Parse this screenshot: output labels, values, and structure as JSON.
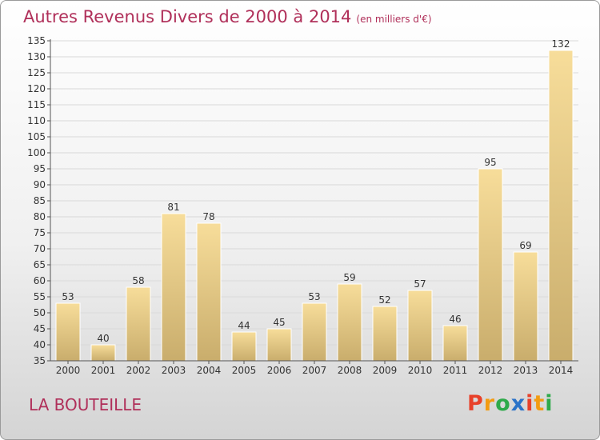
{
  "header": {
    "title": "Autres Revenus Divers de 2000 à 2014",
    "subtitle": "(en milliers d'€)"
  },
  "footer": {
    "commune": "LA BOUTEILLE",
    "logo_letters": [
      "P",
      "r",
      "o",
      "x",
      "i",
      "t",
      "i"
    ],
    "logo_colors": [
      "#e8412a",
      "#f39c12",
      "#2eaa4a",
      "#2b73c8",
      "#e8412a",
      "#f39c12",
      "#2eaa4a"
    ]
  },
  "colors": {
    "title": "#b0305a",
    "bar_light": "#f7dd9a",
    "bar_dark": "#c9ad6c",
    "grid": "#d9d9d9",
    "axis": "#555555"
  },
  "chart_data": {
    "type": "bar",
    "title": "Autres Revenus Divers de 2000 à 2014",
    "subtitle": "(en milliers d'€)",
    "categories": [
      "2000",
      "2001",
      "2002",
      "2003",
      "2004",
      "2005",
      "2006",
      "2007",
      "2008",
      "2009",
      "2010",
      "2011",
      "2012",
      "2013",
      "2014"
    ],
    "values": [
      53,
      40,
      58,
      81,
      78,
      44,
      45,
      53,
      59,
      52,
      57,
      46,
      95,
      69,
      132
    ],
    "ylim": [
      35,
      135
    ],
    "ytick_step": 5,
    "grid": true,
    "xlabel": "",
    "ylabel": ""
  }
}
